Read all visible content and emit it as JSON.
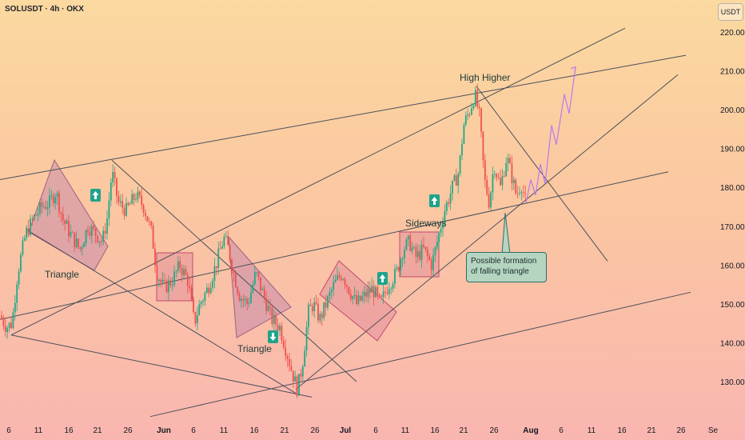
{
  "header": {
    "symbol_title": "SOLUSDT · 4h · OKX",
    "currency": "USDT"
  },
  "chart_data": {
    "type": "candlestick",
    "ylim": [
      120,
      225
    ],
    "y_ticks": [
      130,
      140,
      150,
      160,
      170,
      180,
      190,
      200,
      210,
      220
    ],
    "y_tick_labels": [
      "130.00",
      "140.00",
      "150.00",
      "160.00",
      "170.00",
      "180.00",
      "190.00",
      "200.00",
      "210.00",
      "220.00"
    ],
    "x_ticks": [
      {
        "label": "6",
        "bold": false
      },
      {
        "label": "11",
        "bold": false
      },
      {
        "label": "16",
        "bold": false
      },
      {
        "label": "21",
        "bold": false
      },
      {
        "label": "26",
        "bold": false
      },
      {
        "label": "Jun",
        "bold": true
      },
      {
        "label": "6",
        "bold": false
      },
      {
        "label": "11",
        "bold": false
      },
      {
        "label": "16",
        "bold": false
      },
      {
        "label": "21",
        "bold": false
      },
      {
        "label": "26",
        "bold": false
      },
      {
        "label": "Jul",
        "bold": true
      },
      {
        "label": "6",
        "bold": false
      },
      {
        "label": "11",
        "bold": false
      },
      {
        "label": "16",
        "bold": false
      },
      {
        "label": "21",
        "bold": false
      },
      {
        "label": "26",
        "bold": false
      },
      {
        "label": "Aug",
        "bold": true
      },
      {
        "label": "6",
        "bold": false
      },
      {
        "label": "11",
        "bold": false
      },
      {
        "label": "16",
        "bold": false
      },
      {
        "label": "21",
        "bold": false
      },
      {
        "label": "26",
        "bold": false
      },
      {
        "label": "Se",
        "bold": false
      }
    ],
    "price_path": [
      [
        0,
        147
      ],
      [
        8,
        144
      ],
      [
        15,
        145
      ],
      [
        22,
        158
      ],
      [
        32,
        168
      ],
      [
        42,
        172
      ],
      [
        52,
        175
      ],
      [
        62,
        176
      ],
      [
        70,
        179
      ],
      [
        78,
        172
      ],
      [
        88,
        168
      ],
      [
        100,
        164
      ],
      [
        110,
        170
      ],
      [
        120,
        168
      ],
      [
        128,
        166
      ],
      [
        134,
        172
      ],
      [
        140,
        184
      ],
      [
        148,
        176
      ],
      [
        158,
        174
      ],
      [
        170,
        178
      ],
      [
        180,
        175
      ],
      [
        190,
        168
      ],
      [
        196,
        158
      ],
      [
        205,
        154
      ],
      [
        215,
        156
      ],
      [
        225,
        160
      ],
      [
        235,
        156
      ],
      [
        243,
        145
      ],
      [
        250,
        150
      ],
      [
        260,
        154
      ],
      [
        270,
        160
      ],
      [
        280,
        167
      ],
      [
        286,
        164
      ],
      [
        292,
        158
      ],
      [
        300,
        152
      ],
      [
        310,
        150
      ],
      [
        320,
        158
      ],
      [
        330,
        152
      ],
      [
        340,
        146
      ],
      [
        350,
        144
      ],
      [
        358,
        138
      ],
      [
        366,
        132
      ],
      [
        372,
        128
      ],
      [
        378,
        134
      ],
      [
        386,
        148
      ],
      [
        392,
        150
      ],
      [
        400,
        146
      ],
      [
        410,
        151
      ],
      [
        418,
        155
      ],
      [
        428,
        158
      ],
      [
        436,
        154
      ],
      [
        446,
        150
      ],
      [
        456,
        152
      ],
      [
        466,
        154
      ],
      [
        476,
        150
      ],
      [
        486,
        155
      ],
      [
        496,
        158
      ],
      [
        504,
        164
      ],
      [
        512,
        166
      ],
      [
        520,
        162
      ],
      [
        530,
        164
      ],
      [
        540,
        160
      ],
      [
        548,
        167
      ],
      [
        556,
        174
      ],
      [
        566,
        180
      ],
      [
        574,
        184
      ],
      [
        580,
        196
      ],
      [
        588,
        200
      ],
      [
        594,
        204
      ],
      [
        600,
        198
      ],
      [
        606,
        182
      ],
      [
        612,
        176
      ],
      [
        618,
        186
      ],
      [
        626,
        180
      ],
      [
        634,
        188
      ],
      [
        640,
        183
      ],
      [
        646,
        178
      ],
      [
        652,
        181
      ],
      [
        658,
        176
      ]
    ],
    "projection_path": [
      [
        658,
        176
      ],
      [
        664,
        182
      ],
      [
        670,
        178
      ],
      [
        676,
        186
      ],
      [
        682,
        181
      ],
      [
        690,
        196
      ],
      [
        696,
        191
      ],
      [
        706,
        204
      ],
      [
        712,
        199
      ],
      [
        720,
        211
      ]
    ],
    "trendlines": [
      {
        "name": "upper-channel-line",
        "from": [
          0,
          182
        ],
        "to": [
          858,
          214
        ]
      },
      {
        "name": "steep-support-line",
        "from": [
          14,
          142
        ],
        "to": [
          782,
          221
        ]
      },
      {
        "name": "mid-support-line",
        "from": [
          0,
          146
        ],
        "to": [
          836,
          184
        ]
      },
      {
        "name": "rising-support-line",
        "from": [
          370,
          128
        ],
        "to": [
          848,
          209
        ]
      },
      {
        "name": "lower-channel-line",
        "from": [
          188,
          121
        ],
        "to": [
          864,
          153
        ]
      },
      {
        "name": "descending-line-1",
        "from": [
          140,
          187
        ],
        "to": [
          446,
          130
        ]
      },
      {
        "name": "descending-line-2",
        "from": [
          14,
          142
        ],
        "to": [
          390,
          126
        ]
      },
      {
        "name": "falling-resistance",
        "from": [
          596,
          206
        ],
        "to": [
          760,
          161
        ]
      },
      {
        "name": "triangle-lower-line",
        "from": [
          34,
          169
        ],
        "to": [
          370,
          127
        ]
      }
    ],
    "annotations": [
      {
        "name": "triangle-label-1",
        "text": "Triangle"
      },
      {
        "name": "triangle-label-2",
        "text": "Triangle"
      },
      {
        "name": "sideways-label",
        "text": "Sideways"
      },
      {
        "name": "high-higher-label",
        "text": "High Higher"
      }
    ],
    "note": "Possible formation of falling triangle"
  }
}
